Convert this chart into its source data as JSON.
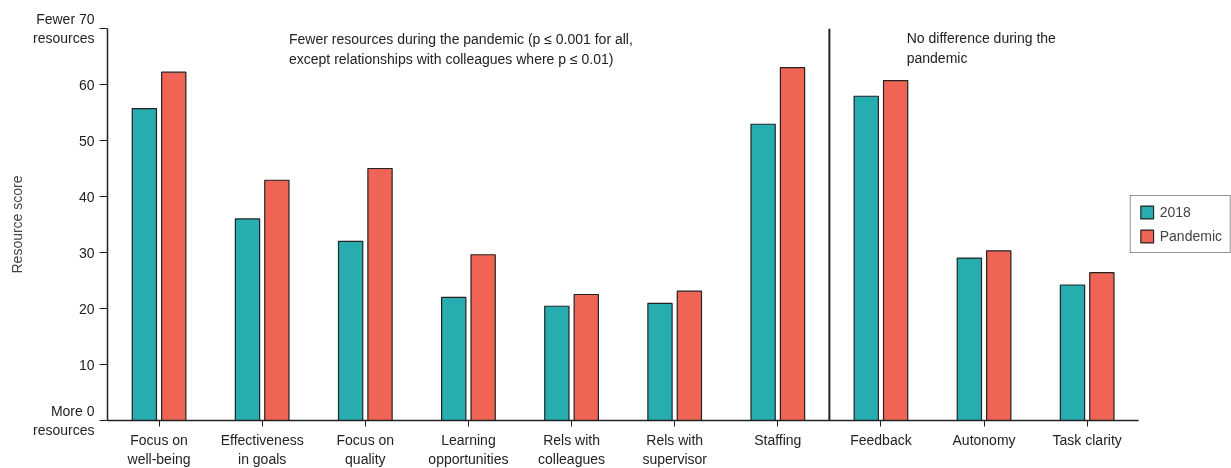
{
  "chart_data": {
    "type": "bar",
    "ylabel": "Resource score",
    "categories": [
      "Focus on\nwell-being",
      "Effectiveness\nin goals",
      "Focus on\nquality",
      "Learning\nopportunities",
      "Rels with\ncolleagues",
      "Rels with\nsupervisor",
      "Staffing",
      "Feedback",
      "Autonomy",
      "Task clarity"
    ],
    "series": [
      {
        "name": "2018",
        "color": "#27adb0",
        "values": [
          55.7,
          36.0,
          32.0,
          22.0,
          20.4,
          20.9,
          52.9,
          57.9,
          29.0,
          24.2
        ]
      },
      {
        "name": "Pandemic",
        "color": "#ef6455",
        "values": [
          62.2,
          42.9,
          45.0,
          29.6,
          22.5,
          23.1,
          63.0,
          60.7,
          30.3,
          26.4
        ]
      }
    ],
    "ylim": [
      0,
      70
    ],
    "yticks": [
      {
        "value": 0,
        "label": "More 0 resources"
      },
      10,
      20,
      30,
      40,
      50,
      60,
      {
        "value": 70,
        "label": "Fewer 70 resources"
      }
    ],
    "annotations": [
      "Fewer resources during the pandemic (p ≤ 0.001 for all,\nexcept relationships with colleagues where p ≤ 0.01)",
      "No difference during the\npandemic"
    ],
    "legend": "right",
    "grid": false
  }
}
